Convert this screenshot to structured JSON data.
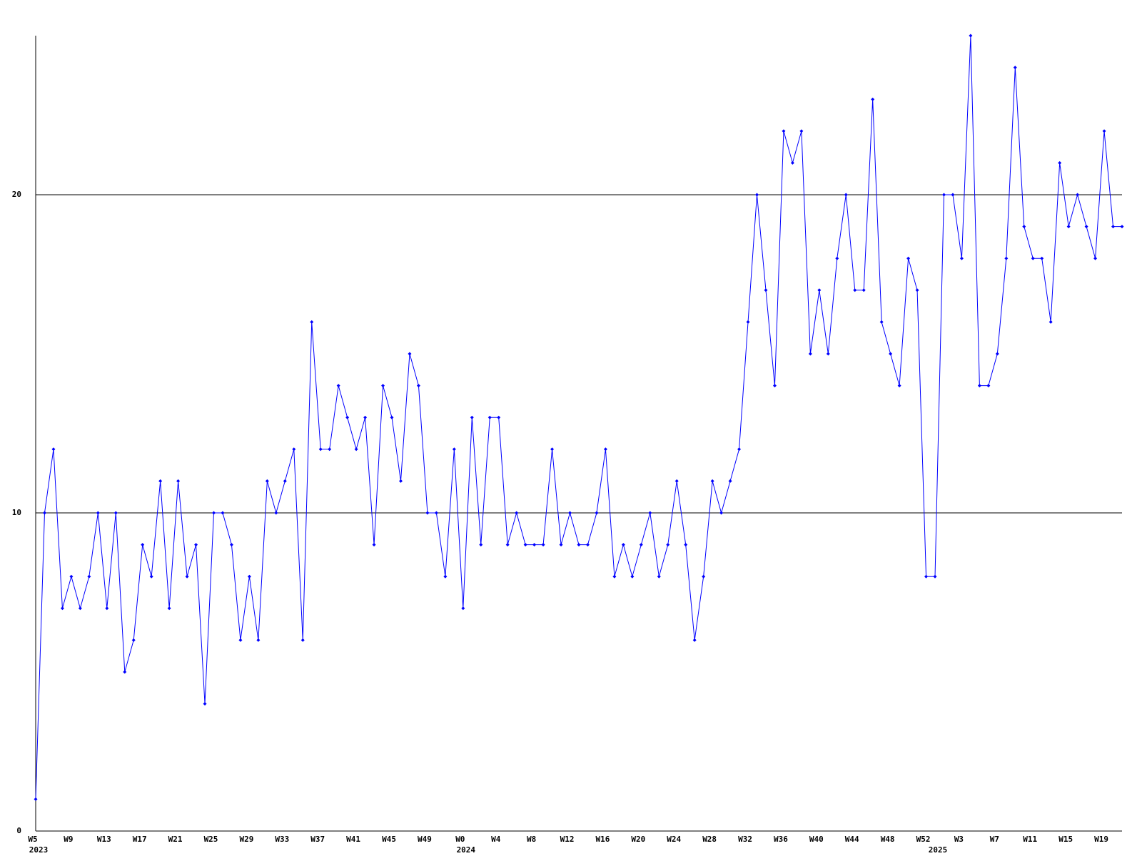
{
  "chart_data": {
    "type": "line",
    "categories": [
      "W5",
      null,
      null,
      null,
      "W9",
      null,
      null,
      null,
      "W13",
      null,
      null,
      null,
      "W17",
      null,
      null,
      null,
      "W21",
      null,
      null,
      null,
      "W25",
      null,
      null,
      null,
      "W29",
      null,
      null,
      null,
      "W33",
      null,
      null,
      null,
      "W37",
      null,
      null,
      null,
      "W41",
      null,
      null,
      null,
      "W45",
      null,
      null,
      null,
      "W49",
      null,
      null,
      null,
      "W0",
      null,
      null,
      null,
      "W4",
      null,
      null,
      null,
      "W8",
      null,
      null,
      null,
      "W12",
      null,
      null,
      null,
      "W16",
      null,
      null,
      null,
      "W20",
      null,
      null,
      null,
      "W24",
      null,
      null,
      null,
      "W28",
      null,
      null,
      null,
      "W32",
      null,
      null,
      null,
      "W36",
      null,
      null,
      null,
      "W40",
      null,
      null,
      null,
      "W44",
      null,
      null,
      null,
      "W48",
      null,
      null,
      null,
      "W52",
      null,
      null,
      null,
      "W3",
      null,
      null,
      null,
      "W7",
      null,
      null,
      null,
      "W11",
      null,
      null,
      null,
      "W15",
      null,
      null,
      null,
      "W19",
      null,
      null
    ],
    "years": [
      "2023",
      null,
      null,
      null,
      null,
      null,
      null,
      null,
      null,
      null,
      null,
      null,
      null,
      null,
      null,
      null,
      null,
      null,
      null,
      null,
      null,
      null,
      null,
      null,
      null,
      null,
      null,
      null,
      null,
      null,
      null,
      null,
      null,
      null,
      null,
      null,
      null,
      null,
      null,
      null,
      null,
      null,
      null,
      null,
      null,
      null,
      null,
      null,
      "2024",
      null,
      null,
      null,
      null,
      null,
      null,
      null,
      null,
      null,
      null,
      null,
      null,
      null,
      null,
      null,
      null,
      null,
      null,
      null,
      null,
      null,
      null,
      null,
      null,
      null,
      null,
      null,
      null,
      null,
      null,
      null,
      null,
      null,
      null,
      null,
      null,
      null,
      null,
      null,
      null,
      null,
      null,
      null,
      null,
      null,
      null,
      null,
      null,
      null,
      null,
      null,
      null,
      "2025",
      null,
      null,
      null,
      null,
      null,
      null,
      null,
      null,
      null,
      null,
      null,
      null,
      null,
      null,
      null,
      null,
      null,
      null,
      null,
      null,
      null
    ],
    "series": [
      {
        "color": "#0000ff",
        "values": [
          1,
          10,
          12,
          7,
          8,
          7,
          8,
          10,
          7,
          10,
          5,
          6,
          9,
          8,
          11,
          7,
          11,
          8,
          9,
          4,
          10,
          10,
          9,
          6,
          8,
          6,
          11,
          10,
          11,
          12,
          6,
          16,
          12,
          12,
          14,
          13,
          12,
          13,
          9,
          14,
          13,
          11,
          15,
          14,
          10,
          10,
          8,
          12,
          7,
          13,
          9,
          13,
          13,
          9,
          10,
          9,
          9,
          9,
          12,
          9,
          10,
          9,
          9,
          10,
          12,
          8,
          9,
          8,
          9,
          10,
          8,
          9,
          11,
          9,
          6,
          8,
          11,
          10,
          11,
          12,
          16,
          20,
          17,
          14,
          22,
          21,
          22,
          15,
          17,
          15,
          18,
          20,
          17,
          17,
          23,
          16,
          15,
          14,
          18,
          17,
          8,
          8,
          20,
          20,
          18,
          25,
          14,
          14,
          15,
          18,
          24,
          19,
          18,
          18,
          16,
          21,
          19,
          20,
          19,
          18,
          22,
          19,
          19
        ]
      }
    ],
    "ylim": [
      0,
      25
    ],
    "yticks": [
      0,
      10,
      20
    ],
    "grid": true
  }
}
